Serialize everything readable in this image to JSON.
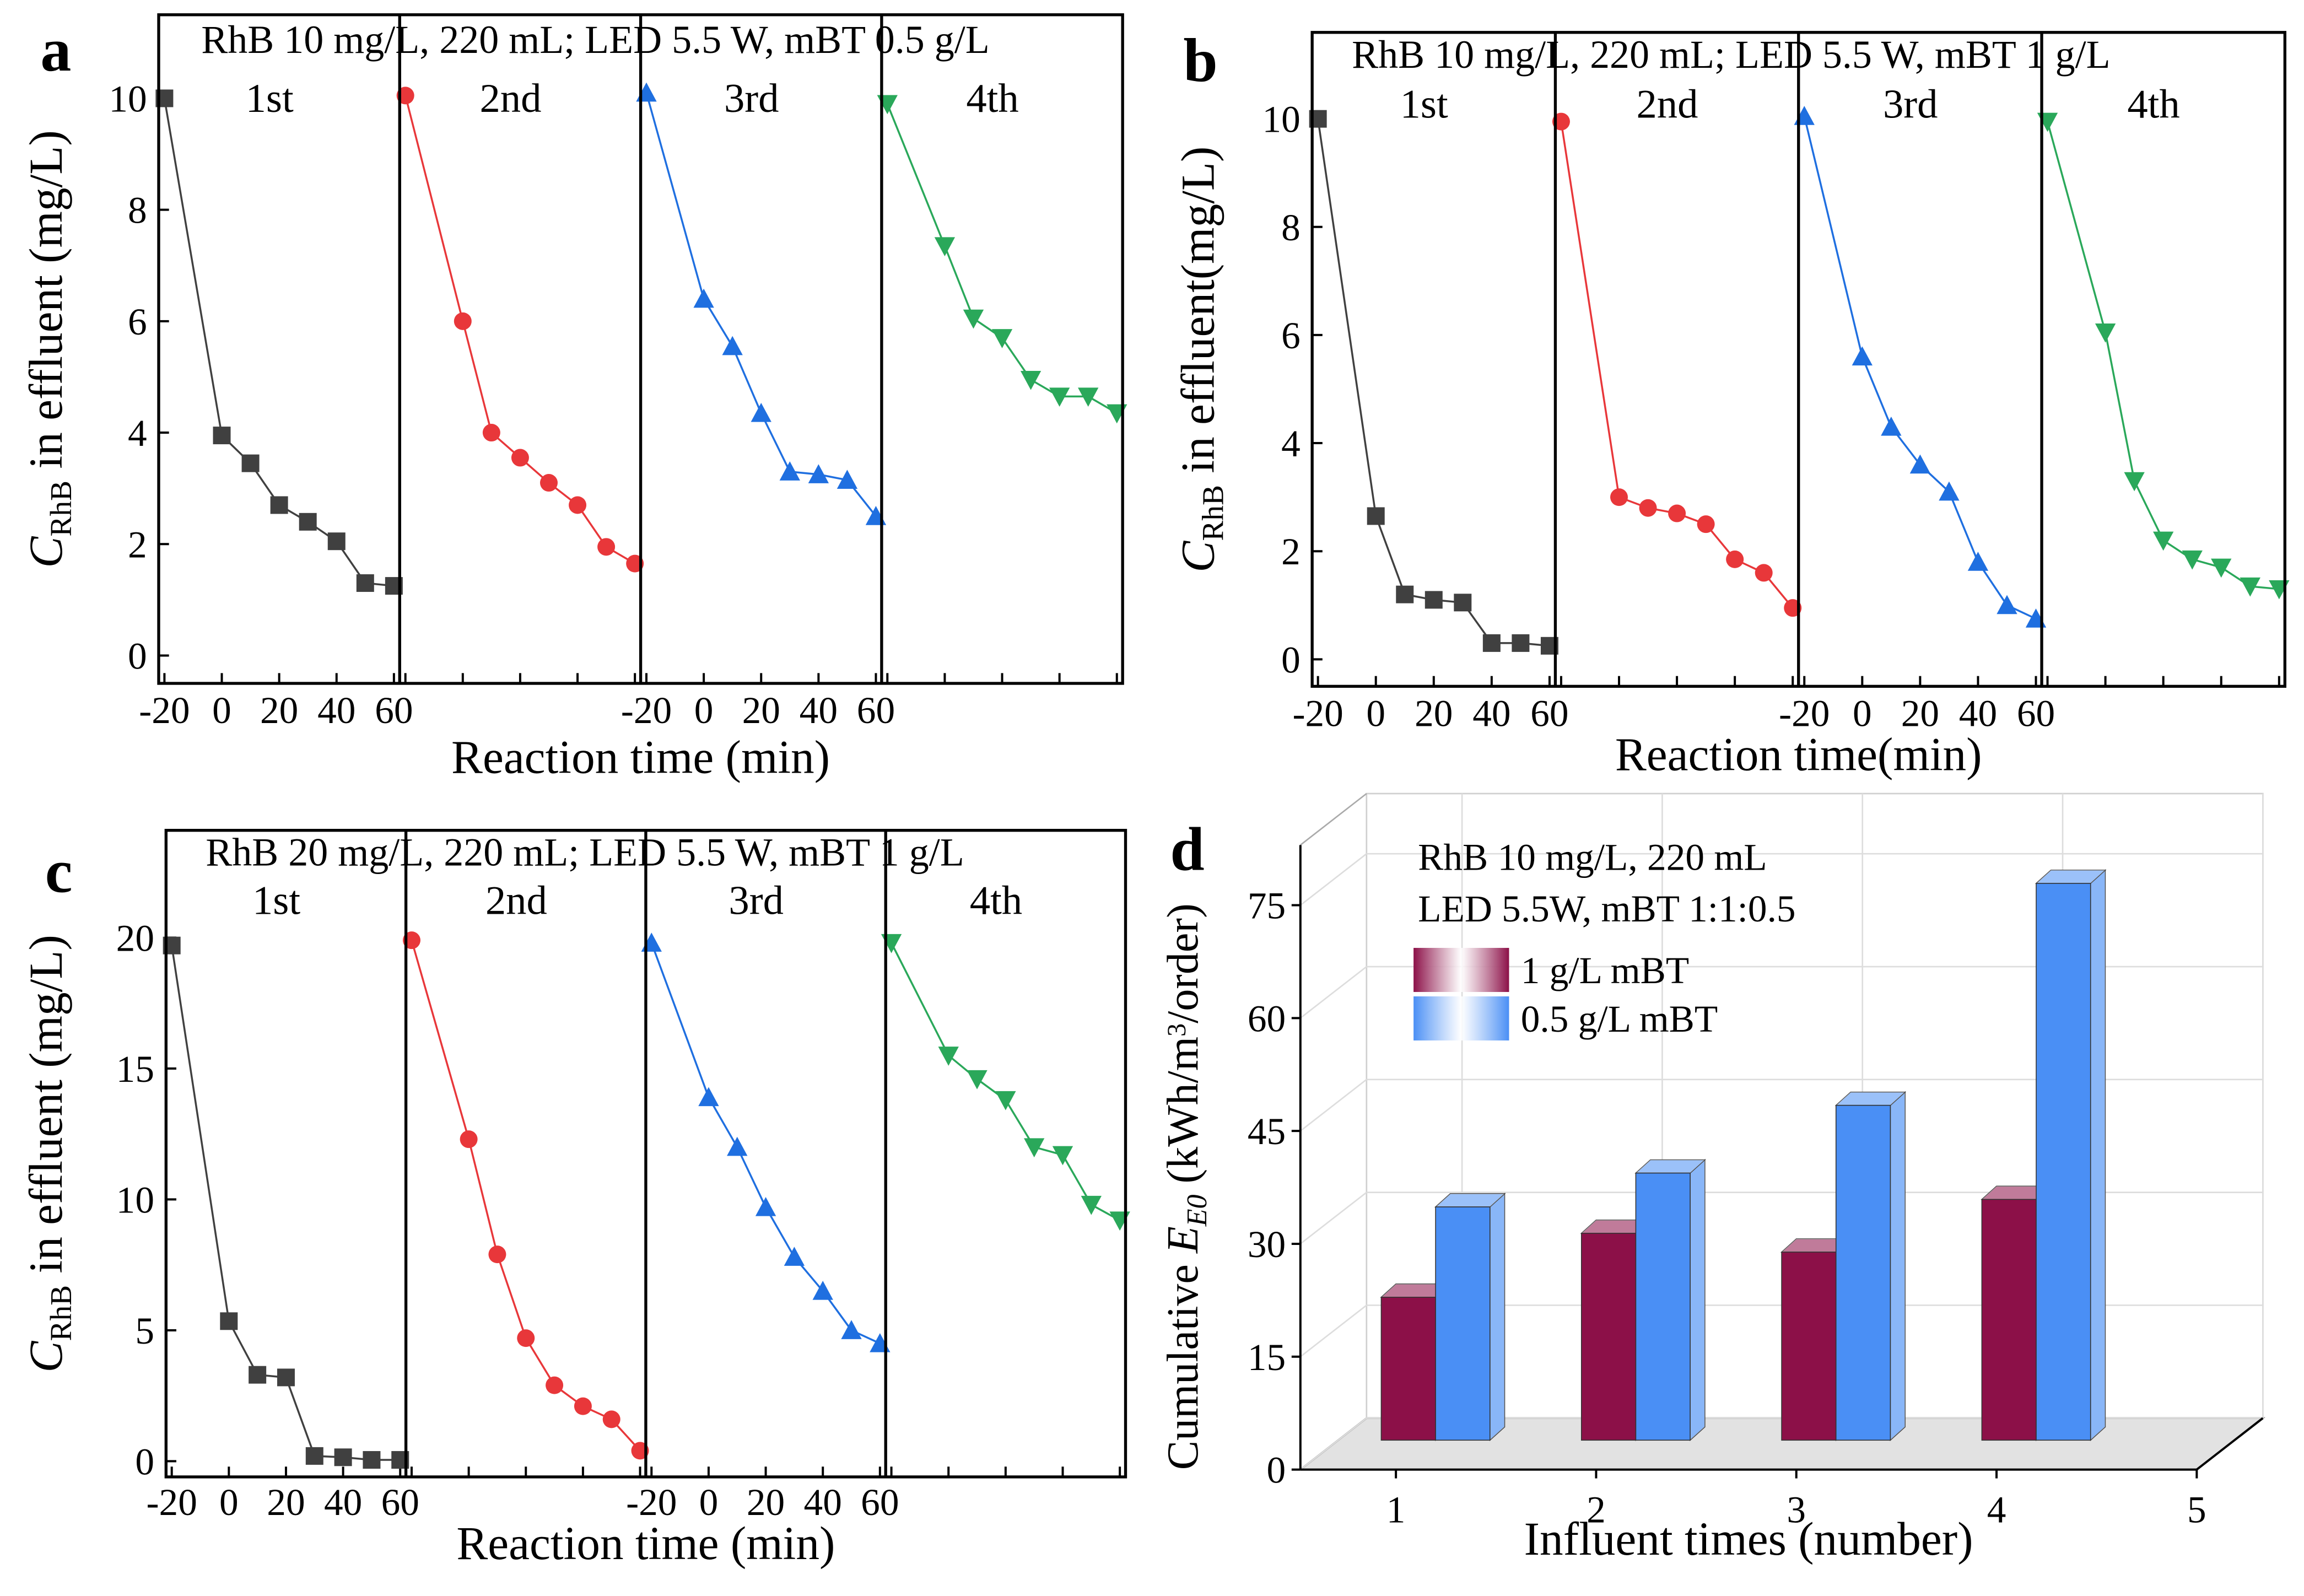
{
  "chart_data": [
    {
      "type": "line",
      "label": "a",
      "annotation": "RhB 10 mg/L, 220 mL; LED 5.5 W, mBT 0.5 g/L",
      "ylabel": [
        {
          "text": "C",
          "style": "italic"
        },
        {
          "text": "RhB",
          "style": "sub"
        },
        {
          "text": " in effluent  (mg/L)",
          "style": "normal"
        }
      ],
      "xlabel": "Reaction time (min)",
      "x": [
        -20,
        0,
        10,
        20,
        30,
        40,
        50,
        60
      ],
      "xlim": [
        -22,
        62
      ],
      "xticks": [
        -20,
        0,
        20,
        40,
        60
      ],
      "xtick_label_panels": [
        0,
        2
      ],
      "ylim": [
        -0.5,
        11.5
      ],
      "yticks": [
        0,
        2,
        4,
        6,
        8,
        10
      ],
      "series": [
        {
          "name": "1st",
          "color": "#404040",
          "marker": "square",
          "values": [
            10.0,
            3.95,
            3.45,
            2.7,
            2.4,
            2.05,
            1.3,
            1.25
          ]
        },
        {
          "name": "2nd",
          "color": "#e8373a",
          "marker": "circle",
          "values": [
            10.05,
            6.0,
            4.0,
            3.55,
            3.1,
            2.7,
            1.95,
            1.65
          ]
        },
        {
          "name": "3rd",
          "color": "#1f6fe0",
          "marker": "triangle-up",
          "values": [
            10.1,
            6.4,
            5.55,
            4.35,
            3.3,
            3.25,
            3.15,
            2.5
          ]
        },
        {
          "name": "4th",
          "color": "#2aa85a",
          "marker": "triangle-down",
          "values": [
            9.9,
            7.35,
            6.05,
            5.7,
            4.95,
            4.65,
            4.65,
            4.35
          ]
        }
      ]
    },
    {
      "type": "line",
      "label": "b",
      "annotation": "RhB 10 mg/L, 220 mL; LED 5.5 W, mBT 1 g/L",
      "ylabel": [
        {
          "text": "C",
          "style": "italic"
        },
        {
          "text": "RhB",
          "style": "sub"
        },
        {
          "text": " in effluent(mg/L)",
          "style": "normal"
        }
      ],
      "xlabel": "Reaction time(min)",
      "x": [
        -20,
        0,
        10,
        20,
        30,
        40,
        50,
        60
      ],
      "xlim": [
        -22,
        62
      ],
      "xticks": [
        -20,
        0,
        20,
        40,
        60
      ],
      "xtick_label_panels": [
        0,
        2
      ],
      "ylim": [
        -0.5,
        11.6
      ],
      "yticks": [
        0,
        2,
        4,
        6,
        8,
        10
      ],
      "series": [
        {
          "name": "1st",
          "color": "#404040",
          "marker": "square",
          "values": [
            10.0,
            2.65,
            1.2,
            1.1,
            1.05,
            0.3,
            0.3,
            0.25
          ]
        },
        {
          "name": "2nd",
          "color": "#e8373a",
          "marker": "circle",
          "values": [
            9.95,
            3.0,
            2.8,
            2.7,
            2.5,
            1.85,
            1.6,
            0.95
          ]
        },
        {
          "name": "3rd",
          "color": "#1f6fe0",
          "marker": "triangle-up",
          "values": [
            10.05,
            5.6,
            4.3,
            3.6,
            3.1,
            1.8,
            1.0,
            0.75
          ]
        },
        {
          "name": "4th",
          "color": "#2aa85a",
          "marker": "triangle-down",
          "values": [
            9.95,
            6.05,
            3.3,
            2.2,
            1.85,
            1.7,
            1.35,
            1.3
          ]
        }
      ]
    },
    {
      "type": "line",
      "label": "c",
      "annotation": "RhB 20 mg/L, 220 mL; LED 5.5 W, mBT 1 g/L",
      "ylabel": [
        {
          "text": "C",
          "style": "italic"
        },
        {
          "text": "RhB",
          "style": "sub"
        },
        {
          "text": " in effluent  (mg/L)",
          "style": "normal"
        }
      ],
      "xlabel": "Reaction time  (min)",
      "x": [
        -20,
        0,
        10,
        20,
        30,
        40,
        50,
        60
      ],
      "xlim": [
        -22,
        62
      ],
      "xticks": [
        -20,
        0,
        20,
        40,
        60
      ],
      "xtick_label_panels": [
        0,
        2
      ],
      "ylim": [
        -0.6,
        24.1
      ],
      "yticks": [
        0,
        5,
        10,
        15,
        20
      ],
      "series": [
        {
          "name": "1st",
          "color": "#404040",
          "marker": "square",
          "values": [
            19.7,
            5.35,
            3.3,
            3.2,
            0.2,
            0.15,
            0.05,
            0.05
          ]
        },
        {
          "name": "2nd",
          "color": "#e8373a",
          "marker": "circle",
          "values": [
            19.9,
            12.3,
            7.9,
            4.7,
            2.9,
            2.1,
            1.6,
            0.4
          ]
        },
        {
          "name": "3rd",
          "color": "#1f6fe0",
          "marker": "triangle-up",
          "values": [
            19.8,
            13.9,
            12.0,
            9.7,
            7.8,
            6.5,
            5.0,
            4.5
          ]
        },
        {
          "name": "4th",
          "color": "#2aa85a",
          "marker": "triangle-down",
          "values": [
            19.8,
            15.5,
            14.6,
            13.8,
            12.0,
            11.7,
            9.8,
            9.2
          ]
        }
      ]
    },
    {
      "type": "bar",
      "label": "d",
      "annotations": [
        "RhB 10 mg/L, 220 mL",
        "LED 5.5W, mBT 1:1:0.5"
      ],
      "ylabel": [
        {
          "text": "Cumulative ",
          "style": "normal"
        },
        {
          "text": "E",
          "style": "italic"
        },
        {
          "text": "E0",
          "style": "sub-italic"
        },
        {
          "text": "  (kWh/m",
          "style": "normal"
        },
        {
          "text": "3",
          "style": "sup"
        },
        {
          "text": "/order)",
          "style": "normal"
        }
      ],
      "xlabel": "Influent times (number)",
      "categories": [
        "1",
        "2",
        "3",
        "4",
        "5"
      ],
      "ylim": [
        0,
        83
      ],
      "yticks": [
        0,
        15,
        30,
        45,
        60,
        75
      ],
      "series": [
        {
          "name": "1 g/L mBT",
          "color": "#8c1048",
          "values": [
            19,
            27.5,
            25,
            32,
            null
          ]
        },
        {
          "name": "0.5 g/L mBT",
          "color": "#4a8ff5",
          "values": [
            31,
            35.5,
            44.5,
            74,
            null
          ]
        }
      ]
    }
  ]
}
